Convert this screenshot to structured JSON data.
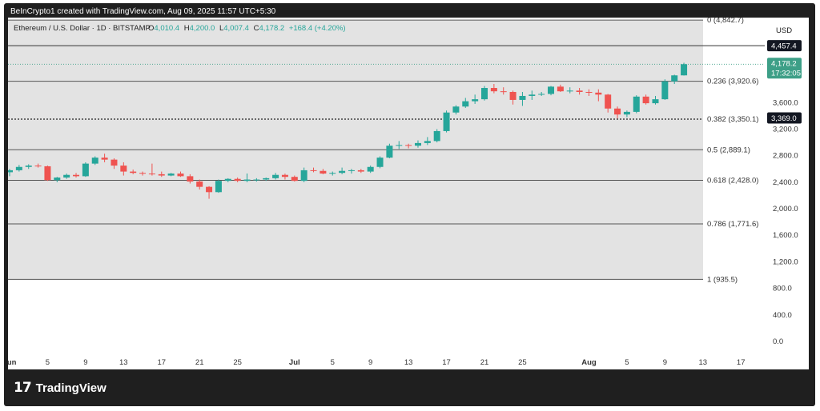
{
  "header": {
    "caption": "BeInCrypto1 created with TradingView.com, Aug 09, 2025 11:57 UTC+5:30"
  },
  "footer": {
    "brand": "TradingView"
  },
  "colors": {
    "up": "#26a69a",
    "down": "#ef5350",
    "fib_line": "#555555",
    "shade": "#e3e3e3",
    "lastPrice": "#3d9f87"
  },
  "chart_data": {
    "type": "candlestick",
    "title": "Ethereum / U.S. Dollar · 1D · BITSTAMP",
    "ohlc_label": {
      "o_label": "O",
      "o": "4,010.4",
      "h_label": "H",
      "h": "4,200.0",
      "l_label": "L",
      "l": "4,007.4",
      "c_label": "C",
      "c": "4,178.2",
      "change": "+168.4 (+4.20%)"
    },
    "currency": "USD",
    "y_ticks": [
      "3,600.0",
      "3,200.0",
      "2,800.0",
      "2,400.0",
      "2,000.0",
      "1,600.0",
      "1,200.0",
      "800.0",
      "400.0",
      "0.0"
    ],
    "x_ticks": [
      "Jun",
      "5",
      "9",
      "13",
      "17",
      "21",
      "25",
      "Jul",
      "5",
      "9",
      "13",
      "17",
      "21",
      "25",
      "Aug",
      "5",
      "9",
      "13",
      "17"
    ],
    "x_ticks_bold": [
      true,
      false,
      false,
      false,
      false,
      false,
      false,
      true,
      false,
      false,
      false,
      false,
      false,
      false,
      true,
      false,
      false,
      false,
      false
    ],
    "fib_levels": [
      {
        "label": "0 (4,842.7)",
        "price": 4842.7
      },
      {
        "label": "0.236 (3,920.6)",
        "price": 3920.6
      },
      {
        "label": "0.382 (3,350.1)",
        "price": 3350.1
      },
      {
        "label": "0.5 (2,889.1)",
        "price": 2889.1
      },
      {
        "label": "0.618 (2,428.0)",
        "price": 2428.0
      },
      {
        "label": "0.786 (1,771.6)",
        "price": 1771.6
      },
      {
        "label": "1 (935.5)",
        "price": 935.5
      }
    ],
    "price_labels": [
      {
        "text": "4,457.4",
        "price": 4457.4,
        "style": "dark"
      },
      {
        "text": "3,369.0",
        "price": 3369.0,
        "style": "dark"
      }
    ],
    "last_price": {
      "text": "4,178.2",
      "countdown": "17:32:05",
      "price": 4178.2
    },
    "candles": [
      [
        2550,
        2600,
        2490,
        2580
      ],
      [
        2580,
        2660,
        2560,
        2630
      ],
      [
        2630,
        2670,
        2600,
        2650
      ],
      [
        2650,
        2680,
        2620,
        2640
      ],
      [
        2640,
        2650,
        2420,
        2430
      ],
      [
        2430,
        2480,
        2400,
        2470
      ],
      [
        2470,
        2530,
        2450,
        2510
      ],
      [
        2510,
        2540,
        2470,
        2490
      ],
      [
        2490,
        2700,
        2480,
        2680
      ],
      [
        2680,
        2790,
        2660,
        2770
      ],
      [
        2770,
        2830,
        2700,
        2740
      ],
      [
        2740,
        2760,
        2600,
        2650
      ],
      [
        2650,
        2700,
        2500,
        2560
      ],
      [
        2560,
        2590,
        2520,
        2540
      ],
      [
        2540,
        2560,
        2500,
        2530
      ],
      [
        2530,
        2680,
        2500,
        2520
      ],
      [
        2520,
        2560,
        2480,
        2500
      ],
      [
        2500,
        2540,
        2490,
        2530
      ],
      [
        2530,
        2560,
        2480,
        2490
      ],
      [
        2490,
        2520,
        2380,
        2410
      ],
      [
        2410,
        2440,
        2290,
        2330
      ],
      [
        2330,
        2340,
        2150,
        2250
      ],
      [
        2250,
        2440,
        2240,
        2420
      ],
      [
        2420,
        2460,
        2400,
        2450
      ],
      [
        2450,
        2470,
        2400,
        2420
      ],
      [
        2420,
        2530,
        2400,
        2440
      ],
      [
        2440,
        2460,
        2410,
        2440
      ],
      [
        2440,
        2470,
        2420,
        2460
      ],
      [
        2460,
        2540,
        2440,
        2510
      ],
      [
        2510,
        2530,
        2440,
        2480
      ],
      [
        2480,
        2500,
        2410,
        2420
      ],
      [
        2420,
        2620,
        2400,
        2580
      ],
      [
        2580,
        2620,
        2550,
        2570
      ],
      [
        2570,
        2600,
        2520,
        2530
      ],
      [
        2530,
        2560,
        2500,
        2540
      ],
      [
        2540,
        2620,
        2520,
        2570
      ],
      [
        2570,
        2600,
        2530,
        2580
      ],
      [
        2580,
        2600,
        2540,
        2560
      ],
      [
        2560,
        2650,
        2540,
        2630
      ],
      [
        2630,
        2790,
        2610,
        2770
      ],
      [
        2770,
        2980,
        2760,
        2950
      ],
      [
        2950,
        3020,
        2900,
        2960
      ],
      [
        2960,
        2980,
        2910,
        2950
      ],
      [
        2950,
        3030,
        2920,
        2990
      ],
      [
        2990,
        3080,
        2960,
        3020
      ],
      [
        3020,
        3200,
        3000,
        3170
      ],
      [
        3170,
        3480,
        3150,
        3450
      ],
      [
        3450,
        3560,
        3420,
        3540
      ],
      [
        3540,
        3670,
        3520,
        3620
      ],
      [
        3620,
        3720,
        3580,
        3650
      ],
      [
        3650,
        3850,
        3630,
        3820
      ],
      [
        3820,
        3880,
        3740,
        3770
      ],
      [
        3770,
        3830,
        3720,
        3760
      ],
      [
        3760,
        3780,
        3570,
        3640
      ],
      [
        3640,
        3760,
        3550,
        3700
      ],
      [
        3700,
        3780,
        3640,
        3720
      ],
      [
        3720,
        3760,
        3700,
        3730
      ],
      [
        3730,
        3850,
        3710,
        3840
      ],
      [
        3840,
        3870,
        3760,
        3770
      ],
      [
        3770,
        3830,
        3740,
        3780
      ],
      [
        3780,
        3820,
        3720,
        3760
      ],
      [
        3760,
        3800,
        3700,
        3750
      ],
      [
        3750,
        3800,
        3620,
        3720
      ],
      [
        3720,
        3730,
        3450,
        3510
      ],
      [
        3510,
        3540,
        3360,
        3420
      ],
      [
        3420,
        3480,
        3380,
        3460
      ],
      [
        3460,
        3710,
        3440,
        3690
      ],
      [
        3690,
        3720,
        3570,
        3590
      ],
      [
        3590,
        3700,
        3570,
        3650
      ],
      [
        3650,
        3950,
        3640,
        3920
      ],
      [
        3920,
        4020,
        3880,
        4010
      ],
      [
        4010,
        4200,
        4007,
        4178
      ]
    ],
    "candle_dates_note": "Daily candles from Jun 1 to Aug 9, 2025"
  }
}
